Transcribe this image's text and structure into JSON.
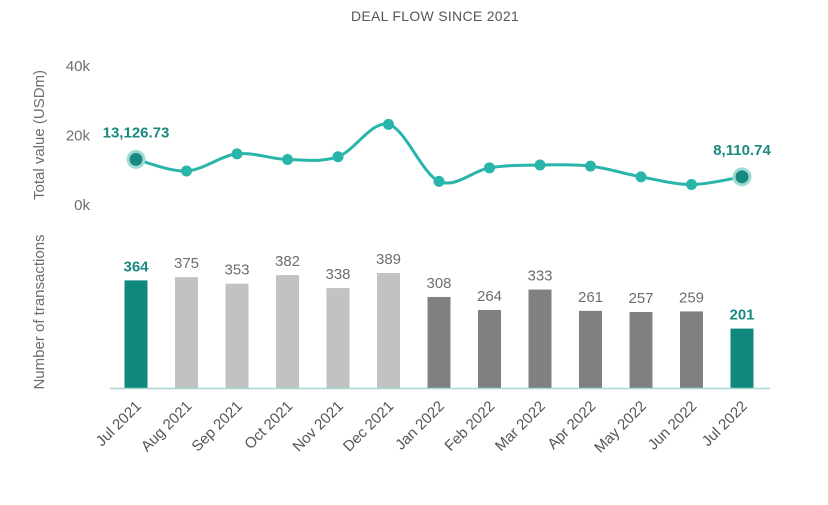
{
  "chart_data": {
    "type": "line+bar",
    "title": "DEAL FLOW SINCE 2021",
    "categories": [
      "Jul 2021",
      "Aug 2021",
      "Sep 2021",
      "Oct 2021",
      "Nov 2021",
      "Dec 2021",
      "Jan 2022",
      "Feb 2022",
      "Mar 2022",
      "Apr 2022",
      "May 2022",
      "Jun 2022",
      "Jul 2022"
    ],
    "top_panel": {
      "type": "line",
      "ylabel": "Total value (USDm)",
      "yticks": [
        "40k",
        "20k",
        "0k"
      ],
      "ytick_values": [
        40000,
        20000,
        0
      ],
      "ylim": [
        0,
        40000
      ],
      "values": [
        13126.73,
        9800,
        14700,
        13100,
        13900,
        23200,
        6800,
        10700,
        11500,
        11200,
        8100,
        5900,
        8110.74
      ],
      "labeled_points": [
        {
          "index": 0,
          "text": "13,126.73"
        },
        {
          "index": 12,
          "text": "8,110.74"
        }
      ],
      "color": "#2ab5aa"
    },
    "bottom_panel": {
      "type": "bar",
      "ylabel": "Number of transactions",
      "values": [
        364,
        375,
        353,
        382,
        338,
        389,
        308,
        264,
        333,
        261,
        257,
        259,
        201
      ],
      "labels": [
        "364",
        "375",
        "353",
        "382",
        "338",
        "389",
        "308",
        "264",
        "333",
        "261",
        "257",
        "259",
        "201"
      ],
      "highlight_indices": [
        0,
        12
      ],
      "colors": {
        "highlight": "#11887e",
        "year_2021": "#c2c2c2",
        "year_2022": "#808080",
        "baseline": "#a8d8d4"
      }
    }
  }
}
